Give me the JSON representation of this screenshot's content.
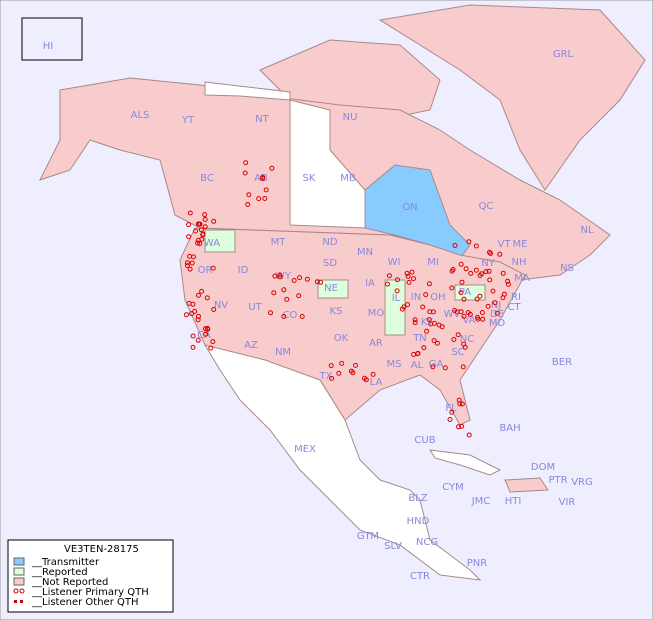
{
  "map": {
    "legend": {
      "title": "VE3TEN-28175",
      "entries": [
        "__Transmitter",
        "__Reported",
        "__Not Reported",
        "__Listener Primary QTH",
        "__Listener Other QTH"
      ]
    },
    "labels": [
      "HI",
      "ALS",
      "YT",
      "NT",
      "NU",
      "GRL",
      "BC",
      "AB",
      "SK",
      "MB",
      "ON",
      "QC",
      "NL",
      "NS",
      "WA",
      "ID",
      "MT",
      "ND",
      "MN",
      "WI",
      "MI",
      "OR",
      "WY",
      "SD",
      "IA",
      "IL",
      "IN",
      "OH",
      "PA",
      "NY",
      "VT",
      "NH",
      "ME",
      "MA",
      "RI",
      "CT",
      "NJ",
      "DE",
      "MD",
      "NE",
      "NV",
      "UT",
      "CO",
      "KS",
      "MO",
      "KY",
      "WV",
      "VA",
      "CA",
      "AZ",
      "NM",
      "OK",
      "AR",
      "TN",
      "NC",
      "SC",
      "MS",
      "AL",
      "GA",
      "TX",
      "LA",
      "FL",
      "MEX",
      "CUB",
      "BAH",
      "BER",
      "DOM",
      "PTR",
      "VRG",
      "CYM",
      "JMC",
      "HTI",
      "VIR",
      "BLZ",
      "HND",
      "GTM",
      "SLV",
      "NCG",
      "CTR",
      "PNR"
    ]
  }
}
